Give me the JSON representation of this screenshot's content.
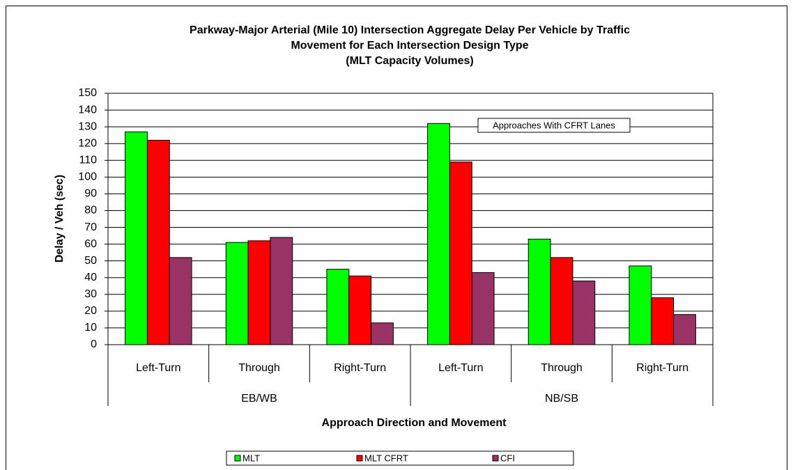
{
  "chart_data": {
    "type": "bar",
    "title": [
      "Parkway-Major Arterial (Mile 10) Intersection Aggregate Delay Per Vehicle by Traffic",
      "Movement for Each Intersection Design Type",
      "(MLT Capacity Volumes)"
    ],
    "ylabel": "Delay / Veh (sec)",
    "xlabel": "Approach Direction and Movement",
    "annotation": "Approaches With CFRT Lanes",
    "categories": [
      "Left-Turn",
      "Through",
      "Right-Turn",
      "Left-Turn",
      "Through",
      "Right-Turn"
    ],
    "groups": [
      "EB/WB",
      "NB/SB"
    ],
    "series": [
      {
        "name": "MLT",
        "color": "#00ff00",
        "values": [
          127,
          61,
          45,
          132,
          63,
          47
        ]
      },
      {
        "name": "MLT CFRT",
        "color": "#ff0000",
        "values": [
          122,
          62,
          41,
          109,
          52,
          28
        ]
      },
      {
        "name": "CFI",
        "color": "#993366",
        "values": [
          52,
          64,
          13,
          43,
          38,
          18
        ]
      }
    ],
    "ylim": [
      0,
      150
    ],
    "yticks": [
      0,
      10,
      20,
      30,
      40,
      50,
      60,
      70,
      80,
      90,
      100,
      110,
      120,
      130,
      140,
      150
    ],
    "grid": true,
    "legend": "bottom"
  }
}
